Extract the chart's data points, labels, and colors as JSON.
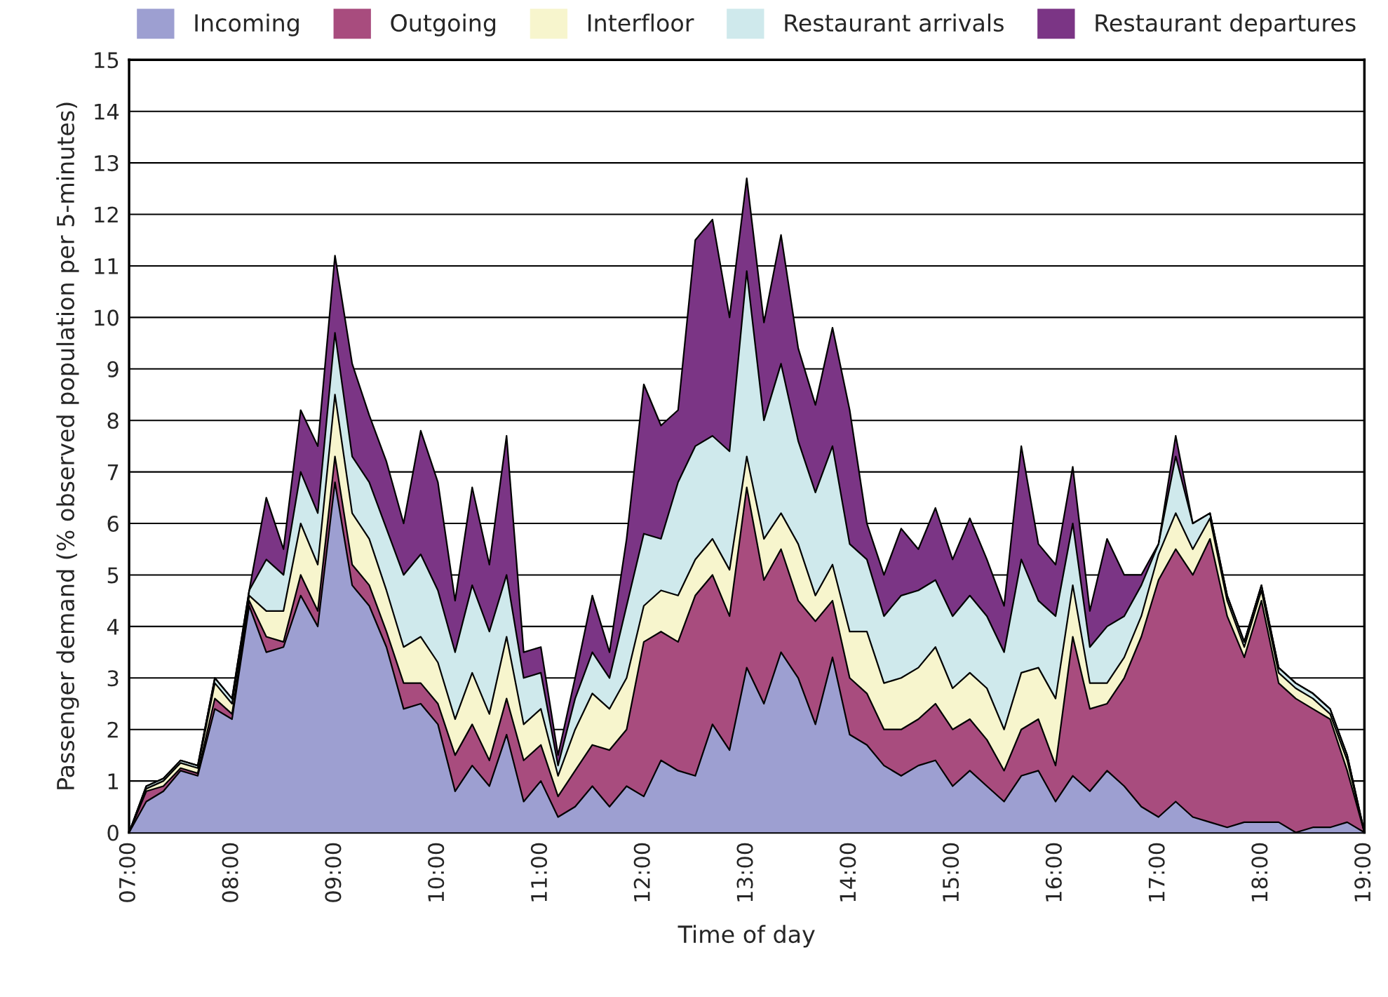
{
  "chart_data": {
    "type": "area",
    "stacked": true,
    "xlabel": "Time of day",
    "ylabel": "Passenger demand (% observed population per 5-minutes)",
    "x": [
      7,
      7.167,
      7.333,
      7.5,
      7.667,
      7.833,
      8,
      8.167,
      8.333,
      8.5,
      8.667,
      8.833,
      9,
      9.167,
      9.333,
      9.5,
      9.667,
      9.833,
      10,
      10.167,
      10.333,
      10.5,
      10.667,
      10.833,
      11,
      11.167,
      11.333,
      11.5,
      11.667,
      11.833,
      12,
      12.167,
      12.333,
      12.5,
      12.667,
      12.833,
      13,
      13.167,
      13.333,
      13.5,
      13.667,
      13.833,
      14,
      14.167,
      14.333,
      14.5,
      14.667,
      14.833,
      15,
      15.167,
      15.333,
      15.5,
      15.667,
      15.833,
      16,
      16.167,
      16.333,
      16.5,
      16.667,
      16.833,
      17,
      17.167,
      17.333,
      17.5,
      17.667,
      17.833,
      18,
      18.167,
      18.333,
      18.5,
      18.667,
      18.833,
      19
    ],
    "series": [
      {
        "name": "Incoming",
        "color": "#9d9fd1",
        "values": [
          0,
          0.6,
          0.8,
          1.2,
          1.1,
          2.4,
          2.2,
          4.4,
          3.5,
          3.6,
          4.6,
          4.0,
          6.8,
          4.8,
          4.4,
          3.6,
          2.4,
          2.5,
          2.1,
          0.8,
          1.3,
          0.9,
          1.9,
          0.6,
          1.0,
          0.3,
          0.5,
          0.9,
          0.5,
          0.9,
          0.7,
          1.4,
          1.2,
          1.1,
          2.1,
          1.6,
          3.2,
          2.5,
          3.5,
          3.0,
          2.1,
          3.4,
          1.9,
          1.7,
          1.3,
          1.1,
          1.3,
          1.4,
          0.9,
          1.2,
          0.9,
          0.6,
          1.1,
          1.2,
          0.6,
          1.1,
          0.8,
          1.2,
          0.9,
          0.5,
          0.3,
          0.6,
          0.3,
          0.2,
          0.1,
          0.2,
          0.2,
          0.2,
          0,
          0.1,
          0.1,
          0.2,
          0
        ]
      },
      {
        "name": "Outgoing",
        "color": "#a84c7e",
        "values": [
          0,
          0.2,
          0.1,
          0.05,
          0.05,
          0.2,
          0.1,
          0.1,
          0.3,
          0.1,
          0.4,
          0.3,
          0.5,
          0.4,
          0.4,
          0.3,
          0.5,
          0.4,
          0.4,
          0.7,
          0.8,
          0.5,
          0.7,
          0.8,
          0.7,
          0.4,
          0.7,
          0.8,
          1.1,
          1.1,
          3.0,
          2.5,
          2.5,
          3.5,
          2.9,
          2.6,
          3.5,
          2.4,
          2.0,
          1.5,
          2.0,
          1.1,
          1.1,
          1.0,
          0.7,
          0.9,
          0.9,
          1.1,
          1.1,
          1.0,
          0.9,
          0.6,
          0.9,
          1.0,
          0.7,
          2.7,
          1.6,
          1.3,
          2.1,
          3.3,
          4.6,
          4.9,
          4.7,
          5.5,
          4.1,
          3.2,
          4.3,
          2.7,
          2.6,
          2.3,
          2.1,
          1.0,
          0
        ]
      },
      {
        "name": "Interfloor",
        "color": "#f7f5cd",
        "values": [
          0,
          0.05,
          0.1,
          0.1,
          0.1,
          0.3,
          0.2,
          0.1,
          0.5,
          0.6,
          1.0,
          0.9,
          1.2,
          1.0,
          0.9,
          0.8,
          0.7,
          0.9,
          0.8,
          0.7,
          1.0,
          0.9,
          1.2,
          0.7,
          0.7,
          0.4,
          0.8,
          1.0,
          0.8,
          1.0,
          0.7,
          0.8,
          0.9,
          0.7,
          0.7,
          0.9,
          0.6,
          0.8,
          0.7,
          1.1,
          0.5,
          0.7,
          0.9,
          1.2,
          0.9,
          1.0,
          1.0,
          1.1,
          0.8,
          0.9,
          1.0,
          0.8,
          1.1,
          1.0,
          1.3,
          1.0,
          0.5,
          0.4,
          0.4,
          0.4,
          0.5,
          0.7,
          0.5,
          0.4,
          0.3,
          0.2,
          0.2,
          0.2,
          0.2,
          0.2,
          0.1,
          0.2,
          0
        ]
      },
      {
        "name": "Restaurant arrivals",
        "color": "#cfe9ec",
        "values": [
          0,
          0.05,
          0.05,
          0.05,
          0.05,
          0.1,
          0.1,
          0.1,
          1.0,
          0.7,
          1.0,
          1.0,
          1.2,
          1.1,
          1.1,
          1.2,
          1.4,
          1.6,
          1.4,
          1.3,
          1.7,
          1.6,
          1.2,
          0.9,
          0.7,
          0.2,
          0.6,
          0.8,
          0.6,
          1.4,
          1.4,
          1.0,
          2.2,
          2.2,
          2.0,
          2.3,
          3.6,
          2.3,
          2.9,
          2.0,
          2.0,
          2.3,
          1.7,
          1.4,
          1.3,
          1.6,
          1.5,
          1.3,
          1.4,
          1.5,
          1.4,
          1.5,
          2.2,
          1.3,
          1.6,
          1.2,
          0.7,
          1.1,
          0.8,
          0.6,
          0.2,
          1.1,
          0.5,
          0.1,
          0.1,
          0.1,
          0.1,
          0.1,
          0.1,
          0.1,
          0.1,
          0.1,
          0
        ]
      },
      {
        "name": "Restaurant departures",
        "color": "#7b3585",
        "values": [
          0,
          0,
          0,
          0,
          0,
          0,
          0,
          0,
          1.2,
          0.5,
          1.2,
          1.3,
          1.5,
          1.8,
          1.3,
          1.3,
          1.0,
          2.4,
          2.1,
          1.0,
          1.9,
          1.3,
          2.7,
          0.5,
          0.5,
          0.2,
          0.4,
          1.1,
          0.5,
          1.3,
          2.9,
          2.2,
          1.4,
          4.0,
          4.2,
          2.6,
          1.8,
          1.9,
          2.5,
          1.8,
          1.7,
          2.3,
          2.6,
          0.7,
          0.8,
          1.3,
          0.8,
          1.4,
          1.1,
          1.5,
          1.1,
          0.9,
          2.2,
          1.1,
          1.0,
          1.1,
          0.7,
          1.7,
          0.8,
          0.2,
          0,
          0.4,
          0,
          0,
          0,
          0,
          0,
          0,
          0,
          0,
          0,
          0,
          0
        ]
      }
    ],
    "xlim": [
      7,
      19
    ],
    "xticks": [
      {
        "value": 7,
        "label": "07:00"
      },
      {
        "value": 8,
        "label": "08:00"
      },
      {
        "value": 9,
        "label": "09:00"
      },
      {
        "value": 10,
        "label": "10:00"
      },
      {
        "value": 11,
        "label": "11:00"
      },
      {
        "value": 12,
        "label": "12:00"
      },
      {
        "value": 13,
        "label": "13:00"
      },
      {
        "value": 14,
        "label": "14:00"
      },
      {
        "value": 15,
        "label": "15:00"
      },
      {
        "value": 16,
        "label": "16:00"
      },
      {
        "value": 17,
        "label": "17:00"
      },
      {
        "value": 18,
        "label": "18:00"
      },
      {
        "value": 19,
        "label": "19:00"
      }
    ],
    "ylim": [
      0,
      15
    ],
    "yticks": [
      0,
      1,
      2,
      3,
      4,
      5,
      6,
      7,
      8,
      9,
      10,
      11,
      12,
      13,
      14,
      15
    ],
    "grid": "y",
    "legend": "top"
  }
}
